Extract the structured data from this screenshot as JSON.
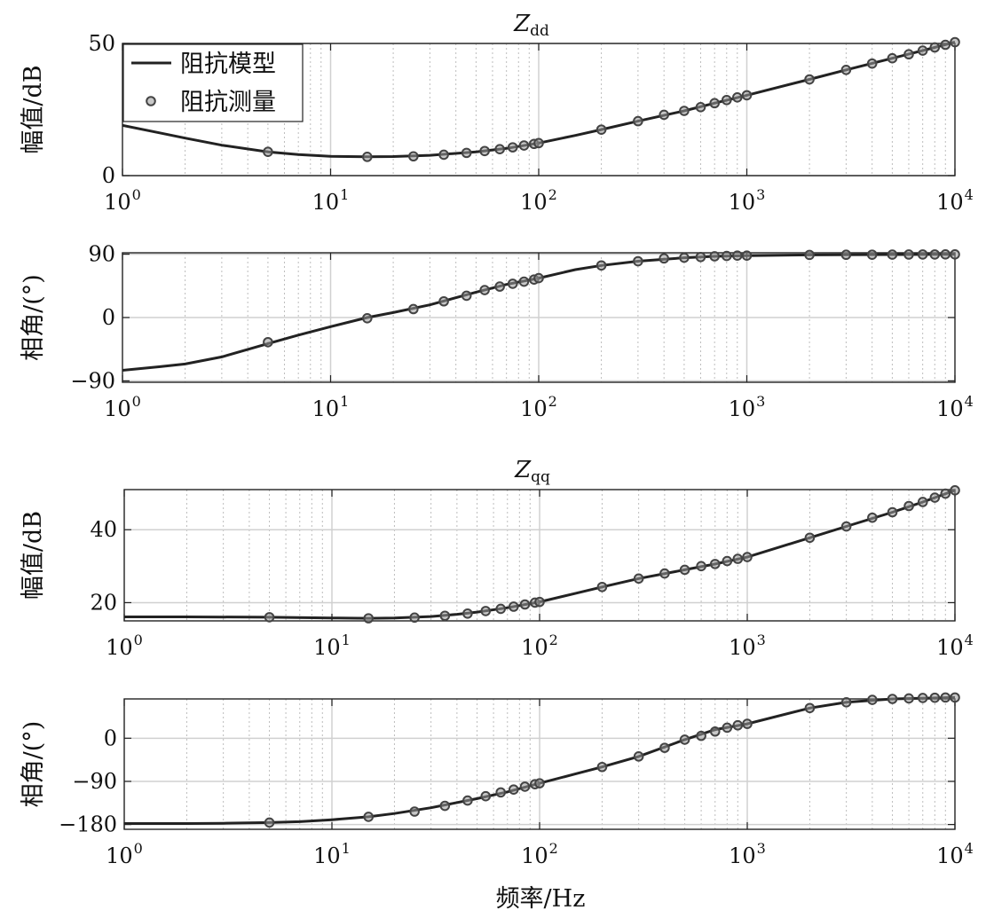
{
  "figure": {
    "xlabel": "频率/Hz",
    "legend": {
      "location": "top-left",
      "items": [
        {
          "label": "阻抗模型",
          "kind": "line"
        },
        {
          "label": "阻抗测量",
          "kind": "marker"
        }
      ]
    },
    "colors": {
      "line": "#222222",
      "marker_edge": "#444444",
      "marker_face": "#9a9a9a",
      "grid_major": "#d0d0d0",
      "grid_minor": "#bdbdbd"
    }
  },
  "chart_data": [
    {
      "type": "line",
      "title": "Z",
      "title_subscript": "dd",
      "ylabel": "幅值/dB",
      "xscale": "log",
      "xlim": [
        1,
        10000
      ],
      "ylim": [
        0,
        50
      ],
      "yticks": [
        0,
        50
      ],
      "ytick_labels": [
        "0",
        "50"
      ],
      "xtick_labels": [
        "10^0",
        "10^1",
        "10^2",
        "10^3",
        "10^4"
      ],
      "grid": true,
      "series": [
        {
          "name": "阻抗模型",
          "x": [
            1,
            1.5,
            2,
            3,
            5,
            7,
            10,
            15,
            20,
            30,
            50,
            70,
            100,
            150,
            200,
            300,
            500,
            700,
            1000,
            2000,
            3000,
            5000,
            7000,
            10000
          ],
          "y": [
            19,
            16.2,
            14.2,
            11.5,
            9,
            8,
            7.3,
            7.1,
            7.2,
            7.7,
            9,
            10.3,
            12.3,
            15.2,
            17.4,
            20.6,
            24.5,
            27.4,
            30.4,
            36.4,
            40,
            44.4,
            47.3,
            50.5
          ]
        },
        {
          "name": "阻抗测量",
          "x": [
            5,
            15,
            25,
            35,
            45,
            55,
            65,
            75,
            85,
            95,
            100,
            200,
            300,
            400,
            500,
            600,
            700,
            800,
            900,
            1000,
            2000,
            3000,
            4000,
            5000,
            6000,
            7000,
            8000,
            9000,
            10000
          ],
          "y": [
            9,
            7.1,
            7.3,
            7.9,
            8.6,
            9.3,
            10,
            10.7,
            11.4,
            12,
            12.3,
            17.4,
            20.6,
            23,
            24.5,
            25.9,
            27.4,
            28.6,
            29.6,
            30.4,
            36.4,
            40,
            42.4,
            44.4,
            45.9,
            47.3,
            48.5,
            49.5,
            50.5
          ]
        }
      ]
    },
    {
      "type": "line",
      "title": "",
      "ylabel": "相角/(°)",
      "xscale": "log",
      "xlim": [
        1,
        10000
      ],
      "ylim": [
        -92,
        92
      ],
      "yticks": [
        -90,
        0,
        90
      ],
      "ytick_labels": [
        "−90",
        "0",
        "90"
      ],
      "xtick_labels": [
        "10^0",
        "10^1",
        "10^2",
        "10^3",
        "10^4"
      ],
      "grid": true,
      "series": [
        {
          "name": "阻抗模型",
          "x": [
            1,
            1.5,
            2,
            3,
            5,
            7,
            10,
            15,
            20,
            30,
            50,
            70,
            100,
            150,
            200,
            300,
            500,
            700,
            1000,
            2000,
            5000,
            10000
          ],
          "y": [
            -75,
            -70,
            -66,
            -56,
            -37,
            -25,
            -13,
            0,
            7,
            18,
            36,
            47,
            56,
            68,
            74,
            80,
            85,
            87,
            88,
            89,
            89.5,
            89.7
          ]
        },
        {
          "name": "阻抗测量",
          "x": [
            5,
            15,
            25,
            35,
            45,
            55,
            65,
            75,
            85,
            95,
            100,
            200,
            300,
            400,
            500,
            600,
            700,
            800,
            900,
            1000,
            2000,
            3000,
            4000,
            5000,
            6000,
            7000,
            8000,
            9000,
            10000
          ],
          "y": [
            -35,
            -1,
            12,
            23,
            31,
            39,
            44,
            48,
            51,
            54,
            56,
            74,
            80,
            84,
            85,
            86,
            87,
            87.5,
            88,
            88,
            89,
            89.2,
            89.3,
            89.4,
            89.5,
            89.6,
            89.6,
            89.7,
            89.7
          ]
        }
      ]
    },
    {
      "type": "line",
      "title": "Z",
      "title_subscript": "qq",
      "ylabel": "幅值/dB",
      "xscale": "log",
      "xlim": [
        1,
        10000
      ],
      "ylim": [
        15,
        51
      ],
      "yticks": [
        20,
        40
      ],
      "ytick_labels": [
        "20",
        "40"
      ],
      "xtick_labels": [
        "10^0",
        "10^1",
        "10^2",
        "10^3",
        "10^4"
      ],
      "grid": true,
      "series": [
        {
          "name": "阻抗模型",
          "x": [
            1,
            2,
            5,
            10,
            15,
            20,
            30,
            40,
            50,
            70,
            100,
            150,
            200,
            300,
            500,
            700,
            1000,
            2000,
            3000,
            5000,
            7000,
            10000
          ],
          "y": [
            16.1,
            16.1,
            16,
            15.8,
            15.7,
            15.8,
            16.2,
            16.8,
            17.4,
            18.6,
            20.2,
            22.6,
            24.3,
            26.6,
            29,
            30.6,
            32.5,
            37.8,
            40.9,
            44.8,
            47.6,
            50.8
          ]
        },
        {
          "name": "阻抗测量",
          "x": [
            5,
            15,
            25,
            35,
            45,
            55,
            65,
            75,
            85,
            95,
            100,
            200,
            300,
            400,
            500,
            600,
            700,
            800,
            900,
            1000,
            2000,
            3000,
            4000,
            5000,
            6000,
            7000,
            8000,
            9000,
            10000
          ],
          "y": [
            16,
            15.7,
            15.9,
            16.4,
            17,
            17.7,
            18.3,
            18.9,
            19.5,
            20,
            20.2,
            24.3,
            26.6,
            28,
            29,
            30,
            30.6,
            31.4,
            32,
            32.5,
            37.8,
            40.9,
            43.3,
            44.8,
            46.5,
            47.6,
            48.8,
            49.9,
            50.8
          ]
        }
      ]
    },
    {
      "type": "line",
      "title": "",
      "ylabel": "相角/(°)",
      "xscale": "log",
      "xlim": [
        1,
        10000
      ],
      "ylim": [
        -190,
        82
      ],
      "yticks": [
        -180,
        -90,
        0
      ],
      "ytick_labels": [
        "−180",
        "−90",
        "0"
      ],
      "xtick_labels": [
        "10^0",
        "10^1",
        "10^2",
        "10^3",
        "10^4"
      ],
      "grid": true,
      "series": [
        {
          "name": "阻抗模型",
          "x": [
            1,
            2,
            3,
            5,
            7,
            10,
            15,
            20,
            30,
            50,
            70,
            100,
            150,
            200,
            300,
            500,
            700,
            1000,
            2000,
            3000,
            5000,
            10000
          ],
          "y": [
            -178,
            -178,
            -177.5,
            -176,
            -174,
            -170,
            -164,
            -157,
            -145,
            -126,
            -112,
            -94,
            -74,
            -60,
            -38,
            -3,
            18,
            30,
            63,
            75,
            82,
            85
          ]
        },
        {
          "name": "阻抗测量",
          "x": [
            5,
            15,
            25,
            35,
            45,
            55,
            65,
            75,
            85,
            95,
            100,
            200,
            300,
            400,
            500,
            600,
            700,
            800,
            900,
            1000,
            2000,
            3000,
            4000,
            5000,
            6000,
            7000,
            8000,
            9000,
            10000
          ],
          "y": [
            -176,
            -164,
            -153,
            -141,
            -130,
            -121,
            -113,
            -107,
            -101,
            -96,
            -94,
            -60,
            -38,
            -20,
            -3,
            5,
            14,
            22,
            27,
            30,
            63,
            75,
            80,
            82,
            83,
            84,
            84.5,
            85,
            85
          ]
        }
      ]
    }
  ]
}
